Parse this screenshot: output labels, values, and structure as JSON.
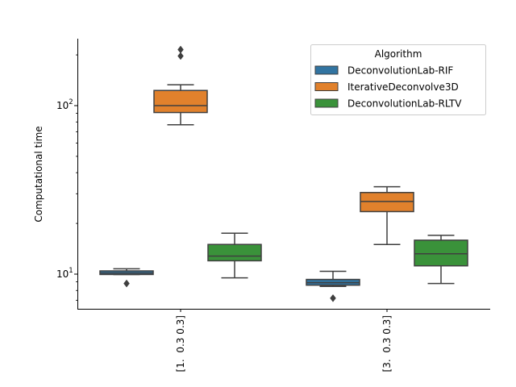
{
  "chart_data": {
    "type": "box",
    "ylabel": "Computational time",
    "yscale": "log",
    "ylim": [
      6,
      250
    ],
    "yticks": [
      {
        "value": 10,
        "label": "10",
        "exp": "1"
      },
      {
        "value": 100,
        "label": "10",
        "exp": "2"
      }
    ],
    "categories": [
      "[1.  0.3 0.3]",
      "[3.  0.3 0.3]"
    ],
    "legend": {
      "title": "Algorithm",
      "position": "top-right"
    },
    "series": [
      {
        "name": "DeconvolutionLab-RIF",
        "color": "#3274a1",
        "boxes": [
          {
            "whislo": 9.95,
            "q1": 9.95,
            "med": 10.15,
            "q3": 10.45,
            "whishi": 10.75,
            "fliers": [
              8.8
            ]
          },
          {
            "whislo": 8.45,
            "q1": 8.6,
            "med": 8.9,
            "q3": 9.3,
            "whishi": 10.4,
            "fliers": [
              7.2
            ]
          }
        ]
      },
      {
        "name": "IterativeDeconvolve3D",
        "color": "#e1812c",
        "boxes": [
          {
            "whislo": 77,
            "q1": 91,
            "med": 100,
            "q3": 123,
            "whishi": 133,
            "fliers": [
              197,
              215
            ]
          },
          {
            "whislo": 15,
            "q1": 23.5,
            "med": 27,
            "q3": 30.5,
            "whishi": 33,
            "fliers": []
          }
        ]
      },
      {
        "name": "DeconvolutionLab-RLTV",
        "color": "#3a923a",
        "boxes": [
          {
            "whislo": 9.5,
            "q1": 12,
            "med": 12.8,
            "q3": 15,
            "whishi": 17.5,
            "fliers": []
          },
          {
            "whislo": 8.8,
            "q1": 11.2,
            "med": 13.2,
            "q3": 15.9,
            "whishi": 17,
            "fliers": []
          }
        ]
      }
    ]
  }
}
